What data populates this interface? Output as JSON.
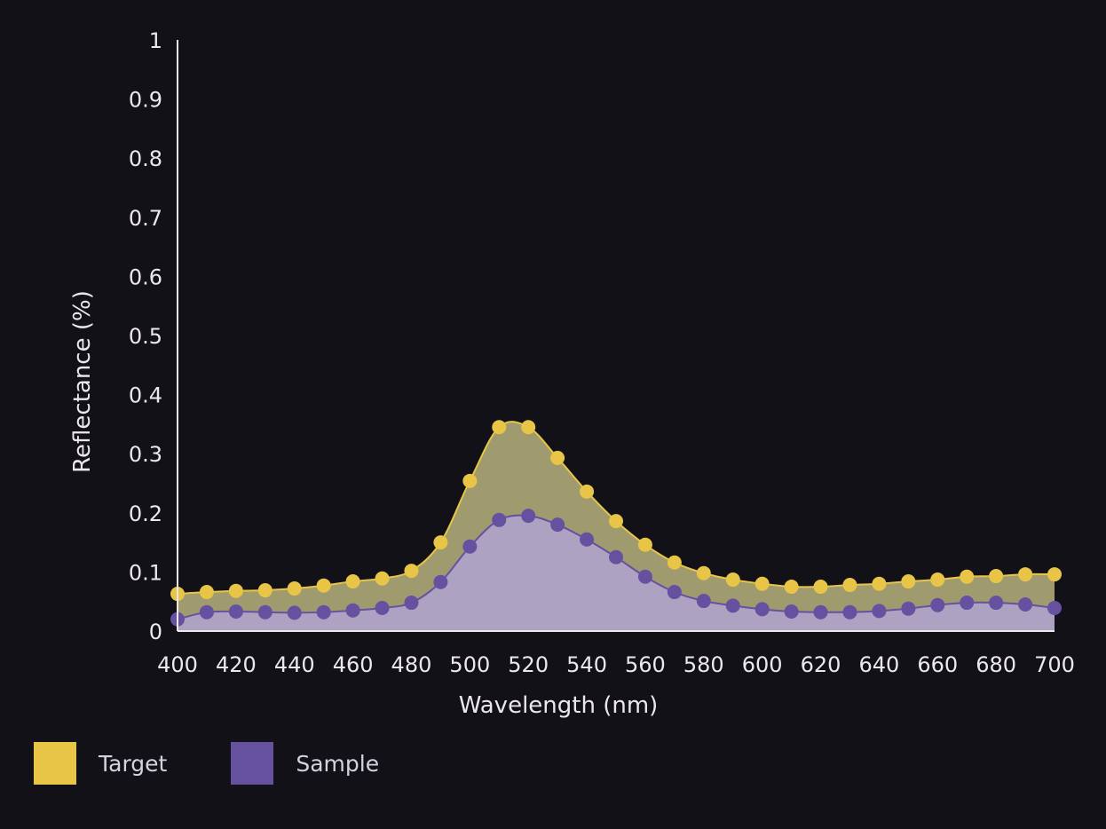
{
  "chart_data": {
    "type": "area",
    "title": "",
    "xlabel": "Wavelength (nm)",
    "ylabel": "Reflectance (%)",
    "xlim": [
      400,
      700
    ],
    "ylim": [
      0,
      1
    ],
    "x_ticks": [
      "400",
      "420",
      "440",
      "460",
      "480",
      "500",
      "520",
      "540",
      "560",
      "580",
      "600",
      "620",
      "640",
      "660",
      "680",
      "700"
    ],
    "y_ticks": [
      "0",
      "0.1",
      "0.2",
      "0.3",
      "0.4",
      "0.5",
      "0.6",
      "0.7",
      "0.8",
      "0.9",
      "1"
    ],
    "grid": false,
    "legend_position": "bottom-left",
    "x": [
      400,
      410,
      420,
      430,
      440,
      450,
      460,
      470,
      480,
      490,
      500,
      510,
      520,
      530,
      540,
      550,
      560,
      570,
      580,
      590,
      600,
      610,
      620,
      630,
      640,
      650,
      660,
      670,
      680,
      690,
      700
    ],
    "series": [
      {
        "name": "Target",
        "color": "#e8c547",
        "fill": "#a09b6e",
        "values": [
          0.063,
          0.066,
          0.068,
          0.069,
          0.072,
          0.077,
          0.084,
          0.089,
          0.102,
          0.15,
          0.254,
          0.345,
          0.345,
          0.293,
          0.236,
          0.186,
          0.146,
          0.116,
          0.098,
          0.087,
          0.08,
          0.075,
          0.075,
          0.078,
          0.08,
          0.084,
          0.087,
          0.092,
          0.093,
          0.096,
          0.096
        ]
      },
      {
        "name": "Sample",
        "color": "#6650a0",
        "fill": "#ada2c2",
        "values": [
          0.02,
          0.032,
          0.033,
          0.032,
          0.031,
          0.032,
          0.035,
          0.039,
          0.048,
          0.083,
          0.143,
          0.188,
          0.195,
          0.18,
          0.155,
          0.125,
          0.092,
          0.066,
          0.051,
          0.043,
          0.037,
          0.033,
          0.032,
          0.032,
          0.034,
          0.038,
          0.044,
          0.048,
          0.048,
          0.045,
          0.039
        ]
      }
    ]
  }
}
